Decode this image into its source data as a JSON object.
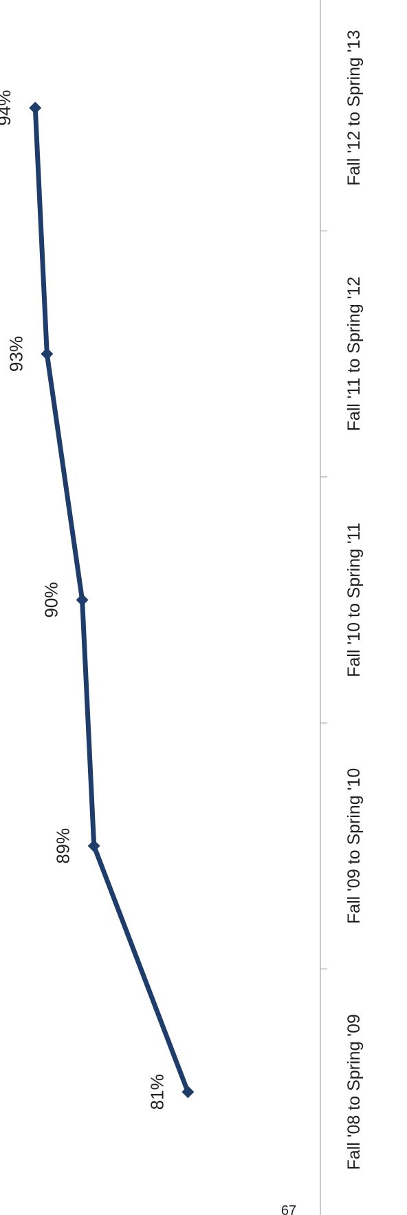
{
  "chart_data": {
    "type": "line",
    "orientation": "rotated-90-clockwise",
    "categories": [
      "Fall '08 to Spring '09",
      "Fall '09 to Spring '10",
      "Fall '10 to Spring '11",
      "Fall '11 to Spring '12",
      "Fall '12 to Spring '13"
    ],
    "series": [
      {
        "values": [
          81,
          89,
          90,
          93,
          94
        ],
        "color": "#1f3d6b"
      }
    ],
    "data_labels": [
      "81%",
      "89%",
      "90%",
      "93%",
      "94%"
    ],
    "ylim": [
      73,
      97
    ],
    "grid": false,
    "marker": "diamond"
  },
  "page": {
    "number": "67"
  }
}
